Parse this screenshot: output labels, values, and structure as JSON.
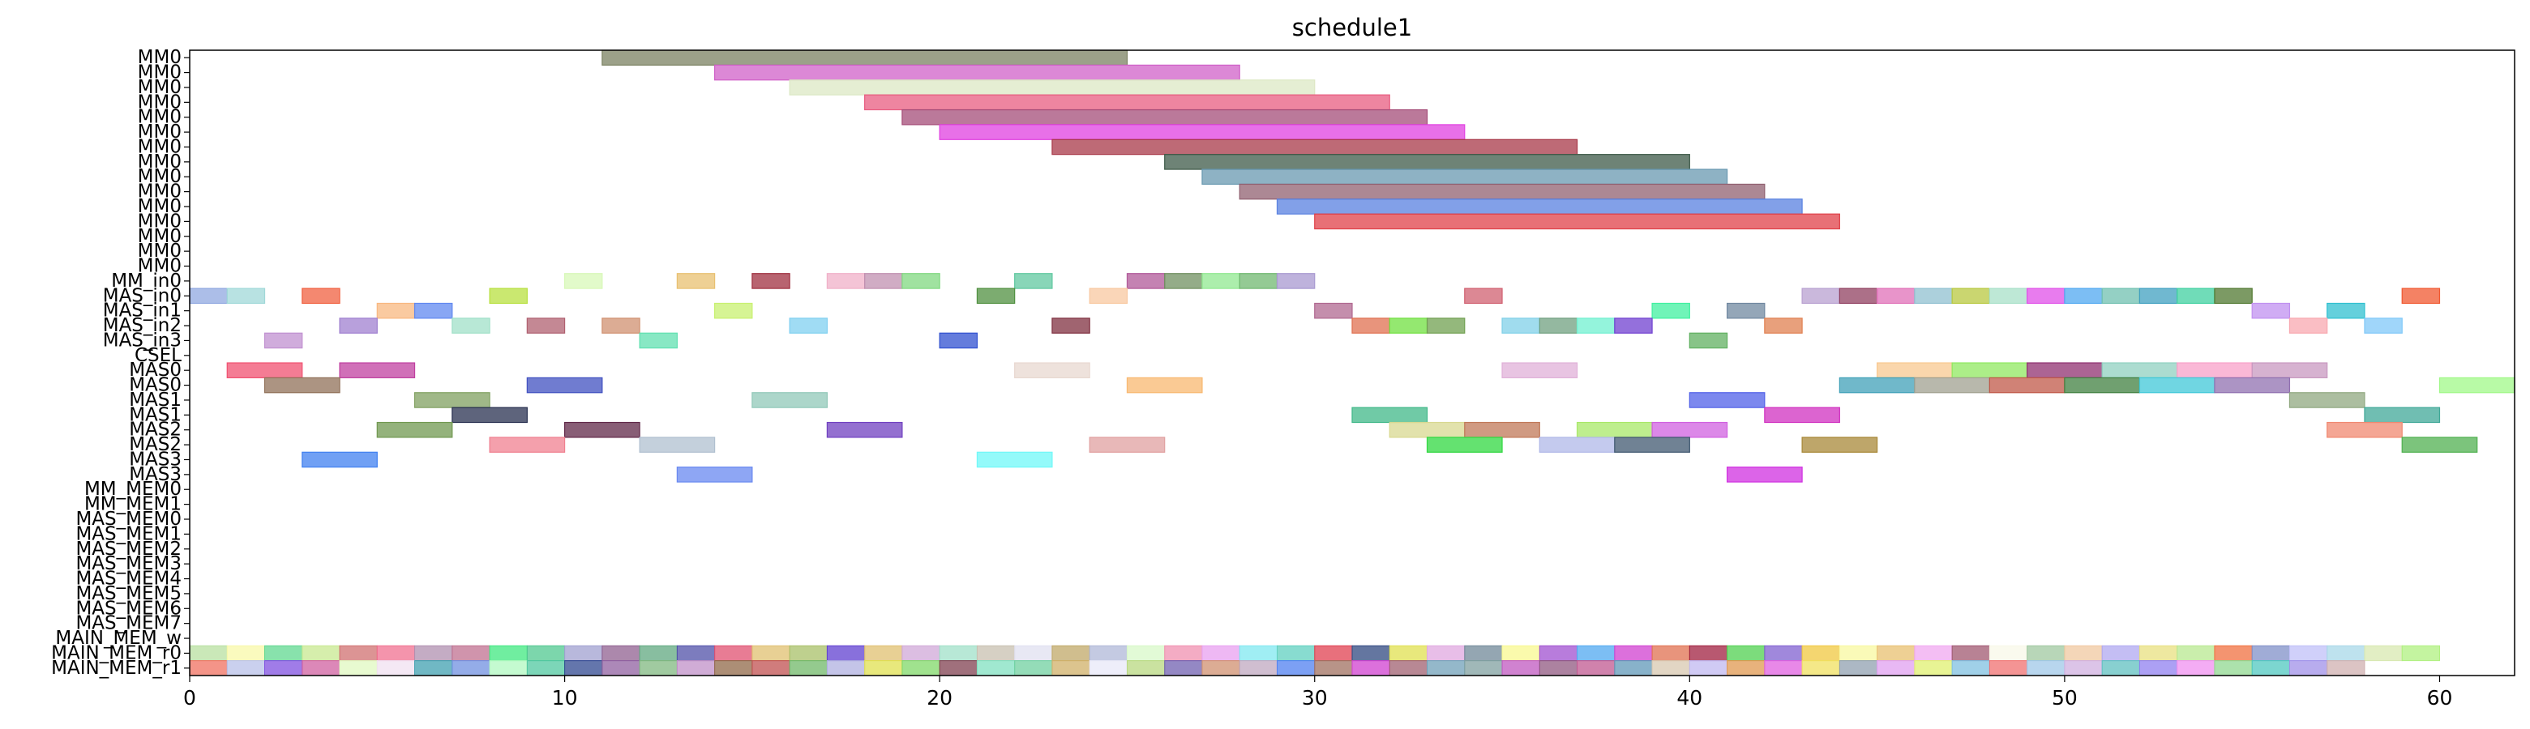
{
  "chart_data": {
    "type": "gantt",
    "title": "schedule1",
    "xlim": [
      0,
      62
    ],
    "x_ticks": [
      0,
      10,
      20,
      30,
      40,
      50,
      60
    ],
    "rows": [
      "MM0",
      "MM0",
      "MM0",
      "MM0",
      "MM0",
      "MM0",
      "MM0",
      "MM0",
      "MM0",
      "MM0",
      "MM0",
      "MM0",
      "MM0",
      "MM0",
      "MM0",
      "MM_in0",
      "MAS_in0",
      "MAS_in1",
      "MAS_in2",
      "MAS_in3",
      "CSEL",
      "MAS0",
      "MAS0",
      "MAS1",
      "MAS1",
      "MAS2",
      "MAS2",
      "MAS3",
      "MAS3",
      "MM_MEM0",
      "MM_MEM1",
      "MAS_MEM0",
      "MAS_MEM1",
      "MAS_MEM2",
      "MAS_MEM3",
      "MAS_MEM4",
      "MAS_MEM5",
      "MAS_MEM6",
      "MAS_MEM7",
      "MAIN_MEM_w",
      "MAIN_MEM_r0",
      "MAIN_MEM_r1"
    ],
    "tasks": [
      {
        "row": 0,
        "start": 11,
        "end": 25,
        "color": "#7b8262"
      },
      {
        "row": 1,
        "start": 14,
        "end": 28,
        "color": "#d060c8"
      },
      {
        "row": 2,
        "start": 16,
        "end": 30,
        "color": "#dce8c4"
      },
      {
        "row": 3,
        "start": 18,
        "end": 32,
        "color": "#e85c80"
      },
      {
        "row": 4,
        "start": 19,
        "end": 33,
        "color": "#a44c78"
      },
      {
        "row": 5,
        "start": 20,
        "end": 34,
        "color": "#e040e0"
      },
      {
        "row": 6,
        "start": 23,
        "end": 37,
        "color": "#a83848"
      },
      {
        "row": 7,
        "start": 26,
        "end": 40,
        "color": "#3e5a48"
      },
      {
        "row": 8,
        "start": 27,
        "end": 41,
        "color": "#6898b0"
      },
      {
        "row": 9,
        "start": 28,
        "end": 42,
        "color": "#906070"
      },
      {
        "row": 10,
        "start": 29,
        "end": 43,
        "color": "#5880e0"
      },
      {
        "row": 11,
        "start": 30,
        "end": 44,
        "color": "#e04048"
      },
      {
        "row": 15,
        "start": 10,
        "end": 11,
        "color": "#d8f8b8"
      },
      {
        "row": 15,
        "start": 13,
        "end": 14,
        "color": "#e8c070"
      },
      {
        "row": 15,
        "start": 15,
        "end": 16,
        "color": "#a03040"
      },
      {
        "row": 15,
        "start": 17,
        "end": 18,
        "color": "#f0b0c8"
      },
      {
        "row": 15,
        "start": 18,
        "end": 19,
        "color": "#c090b0"
      },
      {
        "row": 15,
        "start": 19,
        "end": 20,
        "color": "#80d880"
      },
      {
        "row": 15,
        "start": 22,
        "end": 23,
        "color": "#60c8a0"
      },
      {
        "row": 15,
        "start": 25,
        "end": 26,
        "color": "#b05898"
      },
      {
        "row": 15,
        "start": 26,
        "end": 27,
        "color": "#709060"
      },
      {
        "row": 15,
        "start": 27,
        "end": 28,
        "color": "#90e890"
      },
      {
        "row": 15,
        "start": 28,
        "end": 29,
        "color": "#70b870"
      },
      {
        "row": 15,
        "start": 29,
        "end": 30,
        "color": "#a898d0"
      },
      {
        "row": 16,
        "start": 0,
        "end": 1,
        "color": "#90a8e0"
      },
      {
        "row": 16,
        "start": 1,
        "end": 2,
        "color": "#a0d8d8"
      },
      {
        "row": 16,
        "start": 3,
        "end": 4,
        "color": "#f06040"
      },
      {
        "row": 16,
        "start": 8,
        "end": 9,
        "color": "#b8e040"
      },
      {
        "row": 16,
        "start": 21,
        "end": 22,
        "color": "#509040"
      },
      {
        "row": 16,
        "start": 24,
        "end": 25,
        "color": "#f8c8a0"
      },
      {
        "row": 16,
        "start": 34,
        "end": 35,
        "color": "#d06070"
      },
      {
        "row": 16,
        "start": 43,
        "end": 44,
        "color": "#b8a0d0"
      },
      {
        "row": 16,
        "start": 44,
        "end": 45,
        "color": "#904060"
      },
      {
        "row": 16,
        "start": 45,
        "end": 46,
        "color": "#e070b8"
      },
      {
        "row": 16,
        "start": 46,
        "end": 47,
        "color": "#90c0d0"
      },
      {
        "row": 16,
        "start": 47,
        "end": 48,
        "color": "#b8c840"
      },
      {
        "row": 16,
        "start": 48,
        "end": 49,
        "color": "#a8e0c8"
      },
      {
        "row": 16,
        "start": 49,
        "end": 50,
        "color": "#e050e8"
      },
      {
        "row": 16,
        "start": 50,
        "end": 51,
        "color": "#50a8f0"
      },
      {
        "row": 16,
        "start": 51,
        "end": 52,
        "color": "#70c0b0"
      },
      {
        "row": 16,
        "start": 52,
        "end": 53,
        "color": "#40a0c0"
      },
      {
        "row": 16,
        "start": 53,
        "end": 54,
        "color": "#40d0a0"
      },
      {
        "row": 16,
        "start": 54,
        "end": 55,
        "color": "#507830"
      },
      {
        "row": 16,
        "start": 59,
        "end": 60,
        "color": "#f05830"
      },
      {
        "row": 17,
        "start": 5,
        "end": 6,
        "color": "#f8b880"
      },
      {
        "row": 17,
        "start": 6,
        "end": 7,
        "color": "#6088f0"
      },
      {
        "row": 17,
        "start": 14,
        "end": 15,
        "color": "#c8f070"
      },
      {
        "row": 17,
        "start": 30,
        "end": 31,
        "color": "#b06890"
      },
      {
        "row": 17,
        "start": 39,
        "end": 40,
        "color": "#40f0a0"
      },
      {
        "row": 17,
        "start": 41,
        "end": 42,
        "color": "#7088a0"
      },
      {
        "row": 17,
        "start": 55,
        "end": 56,
        "color": "#c090f0"
      },
      {
        "row": 17,
        "start": 57,
        "end": 58,
        "color": "#30c0d0"
      },
      {
        "row": 18,
        "start": 4,
        "end": 5,
        "color": "#a080d0"
      },
      {
        "row": 18,
        "start": 7,
        "end": 8,
        "color": "#a0e0c8"
      },
      {
        "row": 18,
        "start": 9,
        "end": 10,
        "color": "#b06070"
      },
      {
        "row": 18,
        "start": 11,
        "end": 12,
        "color": "#d09070"
      },
      {
        "row": 18,
        "start": 16,
        "end": 17,
        "color": "#80d0f0"
      },
      {
        "row": 18,
        "start": 23,
        "end": 24,
        "color": "#803040"
      },
      {
        "row": 18,
        "start": 31,
        "end": 32,
        "color": "#e07050"
      },
      {
        "row": 18,
        "start": 32,
        "end": 33,
        "color": "#70e040"
      },
      {
        "row": 18,
        "start": 33,
        "end": 34,
        "color": "#70a050"
      },
      {
        "row": 18,
        "start": 35,
        "end": 36,
        "color": "#80d0e8"
      },
      {
        "row": 18,
        "start": 36,
        "end": 37,
        "color": "#70a080"
      },
      {
        "row": 18,
        "start": 37,
        "end": 38,
        "color": "#70f0d0"
      },
      {
        "row": 18,
        "start": 38,
        "end": 39,
        "color": "#7040d0"
      },
      {
        "row": 18,
        "start": 42,
        "end": 43,
        "color": "#e08050"
      },
      {
        "row": 18,
        "start": 56,
        "end": 57,
        "color": "#f8a8b0"
      },
      {
        "row": 18,
        "start": 58,
        "end": 59,
        "color": "#80c8f8"
      },
      {
        "row": 19,
        "start": 2,
        "end": 3,
        "color": "#c090d0"
      },
      {
        "row": 19,
        "start": 12,
        "end": 13,
        "color": "#60e0b0"
      },
      {
        "row": 19,
        "start": 20,
        "end": 21,
        "color": "#3050d0"
      },
      {
        "row": 19,
        "start": 40,
        "end": 41,
        "color": "#60b060"
      },
      {
        "row": 21,
        "start": 1,
        "end": 3,
        "color": "#f05070"
      },
      {
        "row": 21,
        "start": 4,
        "end": 6,
        "color": "#c040a0"
      },
      {
        "row": 21,
        "start": 22,
        "end": 24,
        "color": "#e8d8d0"
      },
      {
        "row": 21,
        "start": 35,
        "end": 37,
        "color": "#e0b0d8"
      },
      {
        "row": 21,
        "start": 45,
        "end": 47,
        "color": "#f8c890"
      },
      {
        "row": 21,
        "start": 47,
        "end": 49,
        "color": "#90e860"
      },
      {
        "row": 21,
        "start": 49,
        "end": 51,
        "color": "#903070"
      },
      {
        "row": 21,
        "start": 51,
        "end": 53,
        "color": "#90d0c0"
      },
      {
        "row": 21,
        "start": 53,
        "end": 55,
        "color": "#f8a0c8"
      },
      {
        "row": 21,
        "start": 55,
        "end": 57,
        "color": "#c898c0"
      },
      {
        "row": 22,
        "start": 2,
        "end": 4,
        "color": "#907058"
      },
      {
        "row": 22,
        "start": 9,
        "end": 11,
        "color": "#4050c0"
      },
      {
        "row": 22,
        "start": 25,
        "end": 27,
        "color": "#f8b870"
      },
      {
        "row": 22,
        "start": 44,
        "end": 46,
        "color": "#40a0b8"
      },
      {
        "row": 22,
        "start": 46,
        "end": 48,
        "color": "#a0a090"
      },
      {
        "row": 22,
        "start": 48,
        "end": 50,
        "color": "#c05848"
      },
      {
        "row": 22,
        "start": 50,
        "end": 52,
        "color": "#408040"
      },
      {
        "row": 22,
        "start": 52,
        "end": 54,
        "color": "#40c8d8"
      },
      {
        "row": 22,
        "start": 54,
        "end": 56,
        "color": "#9070b0"
      },
      {
        "row": 22,
        "start": 60,
        "end": 62,
        "color": "#a0f888"
      },
      {
        "row": 23,
        "start": 6,
        "end": 8,
        "color": "#80a060"
      },
      {
        "row": 23,
        "start": 15,
        "end": 17,
        "color": "#90c8b8"
      },
      {
        "row": 23,
        "start": 40,
        "end": 42,
        "color": "#5060e8"
      },
      {
        "row": 23,
        "start": 56,
        "end": 58,
        "color": "#90a880"
      },
      {
        "row": 24,
        "start": 7,
        "end": 9,
        "color": "#283050"
      },
      {
        "row": 24,
        "start": 31,
        "end": 33,
        "color": "#40b888"
      },
      {
        "row": 24,
        "start": 42,
        "end": 44,
        "color": "#d030c0"
      },
      {
        "row": 24,
        "start": 58,
        "end": 60,
        "color": "#40a898"
      },
      {
        "row": 25,
        "start": 5,
        "end": 7,
        "color": "#709850"
      },
      {
        "row": 25,
        "start": 10,
        "end": 12,
        "color": "#602848"
      },
      {
        "row": 25,
        "start": 17,
        "end": 19,
        "color": "#7040c0"
      },
      {
        "row": 25,
        "start": 32,
        "end": 34,
        "color": "#d8d890"
      },
      {
        "row": 25,
        "start": 34,
        "end": 36,
        "color": "#c07858"
      },
      {
        "row": 25,
        "start": 37,
        "end": 39,
        "color": "#a8e868"
      },
      {
        "row": 25,
        "start": 39,
        "end": 41,
        "color": "#d060e0"
      },
      {
        "row": 25,
        "start": 57,
        "end": 59,
        "color": "#f08870"
      },
      {
        "row": 26,
        "start": 8,
        "end": 10,
        "color": "#f08090"
      },
      {
        "row": 26,
        "start": 12,
        "end": 14,
        "color": "#b0c0d0"
      },
      {
        "row": 26,
        "start": 24,
        "end": 26,
        "color": "#e0a0a0"
      },
      {
        "row": 26,
        "start": 33,
        "end": 35,
        "color": "#30d840"
      },
      {
        "row": 26,
        "start": 36,
        "end": 38,
        "color": "#b0b8e8"
      },
      {
        "row": 26,
        "start": 38,
        "end": 40,
        "color": "#405870"
      },
      {
        "row": 26,
        "start": 43,
        "end": 45,
        "color": "#a88838"
      },
      {
        "row": 26,
        "start": 59,
        "end": 61,
        "color": "#50b050"
      },
      {
        "row": 27,
        "start": 3,
        "end": 5,
        "color": "#4080f0"
      },
      {
        "row": 27,
        "start": 21,
        "end": 23,
        "color": "#70f8f8"
      },
      {
        "row": 28,
        "start": 13,
        "end": 15,
        "color": "#6888f0"
      },
      {
        "row": 28,
        "start": 41,
        "end": 43,
        "color": "#d030e0"
      }
    ],
    "memory_w_colors": [
      "#b8e0a0",
      "#f8f8a8",
      "#60d890",
      "#c8e890",
      "#d07070",
      "#f07090",
      "#b090b0",
      "#c07090",
      "#40e880",
      "#50c890",
      "#a0a0d0",
      "#906090",
      "#60a880",
      "#5050a8",
      "#e05070",
      "#e0c070",
      "#a8c068",
      "#6040d0",
      "#e0c070",
      "#d0a8d8",
      "#a0e0c8",
      "#c8c0b0",
      "#e0e0f0",
      "#c0a868",
      "#b0b8d8",
      "#d8f8c8",
      "#f090b0",
      "#e8a0f0",
      "#80e8f0",
      "#60d0c0",
      "#e04050",
      "#304880",
      "#e0e050",
      "#e0a8e0",
      "#708898",
      "#f8f890",
      "#a050d0",
      "#50a8f0",
      "#d040d0",
      "#e07050",
      "#a02040",
      "#50d050",
      "#8060d0",
      "#f0c840",
      "#f8f8a0",
      "#e8c070",
      "#f0a8f0",
      "#a05870",
      "#f8f8e8",
      "#a0c8a0",
      "#f0c8a0",
      "#b0a8f0",
      "#e8e080",
      "#b8e890",
      "#f07040",
      "#8090c8",
      "#c0c0f8",
      "#a8d8e8",
      "#d8e8b0",
      "#b0f080"
    ],
    "memory_r0_colors": [
      "#f07060",
      "#b8c0e8",
      "#8050e0",
      "#d060a0",
      "#e0f8c0",
      "#f0e0f0",
      "#40a0b0",
      "#7090e0",
      "#b0f8c0",
      "#50c8a0",
      "#304890",
      "#9060a0",
      "#80b880",
      "#c090c8",
      "#906848",
      "#c05050",
      "#70b868",
      "#b0b0e0",
      "#e0e050",
      "#80d868",
      "#804050",
      "#80e0c0",
      "#70d0a0",
      "#d0b068",
      "#e8e8f8",
      "#b8d880",
      "#7060b0",
      "#d09070",
      "#c0a8c0",
      "#5080f0",
      "#a07060",
      "#d040d0",
      "#a06070",
      "#70a0b8",
      "#80a0a0",
      "#c058c0",
      "#905880",
      "#c05890",
      "#6098b8",
      "#d8c8b0",
      "#c0b8f0",
      "#e09850",
      "#e060e0",
      "#f0e060",
      "#90a0b0",
      "#e0a0f0",
      "#e0f070",
      "#80c0e0",
      "#f07070",
      "#a0c8e8",
      "#d0b0e0",
      "#60c0c0",
      "#9080f0",
      "#f090f0",
      "#90d890",
      "#50c8c0",
      "#a090e8",
      "#d0b0b0"
    ]
  }
}
